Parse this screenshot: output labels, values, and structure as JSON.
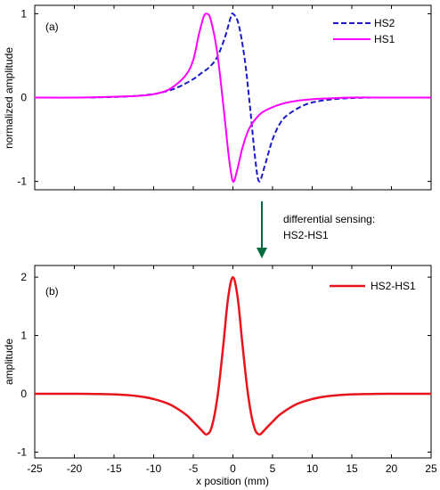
{
  "annotation": {
    "line1": "differential sensing:",
    "line2": "HS2-HS1",
    "arrow_color": "#006B3C"
  },
  "chart_data": [
    {
      "type": "line",
      "panel_label": "(a)",
      "ylabel": "normalized amplitude",
      "xlabel": "",
      "xlim": [
        -25,
        25
      ],
      "ylim": [
        -1.1,
        1.1
      ],
      "yticks": [
        -1,
        0,
        1
      ],
      "xticks": [
        -25,
        -20,
        -15,
        -10,
        -5,
        0,
        5,
        10,
        15,
        20,
        25
      ],
      "show_xtick_labels": false,
      "grid": false,
      "legend_position": "top-right",
      "series": [
        {
          "name": "HS2",
          "color": "#1A1ACC",
          "style": "dashed",
          "x": [
            -18,
            -14,
            -11,
            -9,
            -7,
            -5,
            -4,
            -3,
            -2,
            -1,
            -0.3,
            0,
            0.7,
            1.5,
            2.2,
            2.8,
            3.3,
            4,
            5,
            6,
            7,
            9,
            11,
            14,
            17.5
          ],
          "y": [
            0,
            0.01,
            0.03,
            0.06,
            0.12,
            0.22,
            0.29,
            0.36,
            0.48,
            0.72,
            0.95,
            1.0,
            0.88,
            0.45,
            -0.15,
            -0.72,
            -1.0,
            -0.82,
            -0.5,
            -0.3,
            -0.2,
            -0.09,
            -0.04,
            -0.01,
            0
          ]
        },
        {
          "name": "HS1",
          "color": "#FF00FF",
          "style": "solid",
          "x": [
            -25,
            -20,
            -15,
            -12,
            -10,
            -8,
            -6,
            -5,
            -4.3,
            -3.7,
            -3.3,
            -2.8,
            -2,
            -1.2,
            -0.5,
            0,
            0.5,
            1.2,
            2,
            3,
            4,
            6,
            8,
            10,
            12,
            15,
            20,
            25
          ],
          "y": [
            0,
            0,
            0.01,
            0.02,
            0.04,
            0.1,
            0.26,
            0.45,
            0.75,
            0.96,
            1.0,
            0.93,
            0.55,
            -0.1,
            -0.72,
            -1.0,
            -0.88,
            -0.6,
            -0.38,
            -0.24,
            -0.16,
            -0.08,
            -0.04,
            -0.02,
            -0.01,
            0,
            0,
            0
          ]
        }
      ]
    },
    {
      "type": "line",
      "panel_label": "(b)",
      "ylabel": "amplitude",
      "xlabel": "x position (mm)",
      "xlim": [
        -25,
        25
      ],
      "ylim": [
        -1.1,
        2.2
      ],
      "yticks": [
        -1,
        0,
        1,
        2
      ],
      "xticks": [
        -25,
        -20,
        -15,
        -10,
        -5,
        0,
        5,
        10,
        15,
        20,
        25
      ],
      "show_xtick_labels": true,
      "grid": false,
      "legend_position": "top-right",
      "series": [
        {
          "name": "HS2-HS1",
          "color": "#E8141C",
          "style": "solid",
          "x": [
            -25,
            -20,
            -15,
            -12,
            -10,
            -8,
            -6,
            -5,
            -4,
            -3.5,
            -3.2,
            -2.8,
            -2.3,
            -1.8,
            -1.2,
            -0.6,
            0,
            0.6,
            1.2,
            1.8,
            2.3,
            2.8,
            3.2,
            3.5,
            4,
            5,
            6,
            8,
            10,
            12,
            15,
            20,
            25
          ],
          "y": [
            0,
            0,
            -0.01,
            -0.04,
            -0.09,
            -0.18,
            -0.35,
            -0.48,
            -0.62,
            -0.69,
            -0.69,
            -0.62,
            -0.35,
            0.1,
            0.85,
            1.65,
            2.0,
            1.65,
            0.85,
            0.1,
            -0.35,
            -0.62,
            -0.69,
            -0.69,
            -0.62,
            -0.48,
            -0.35,
            -0.18,
            -0.09,
            -0.04,
            -0.01,
            0,
            0
          ]
        }
      ]
    }
  ]
}
